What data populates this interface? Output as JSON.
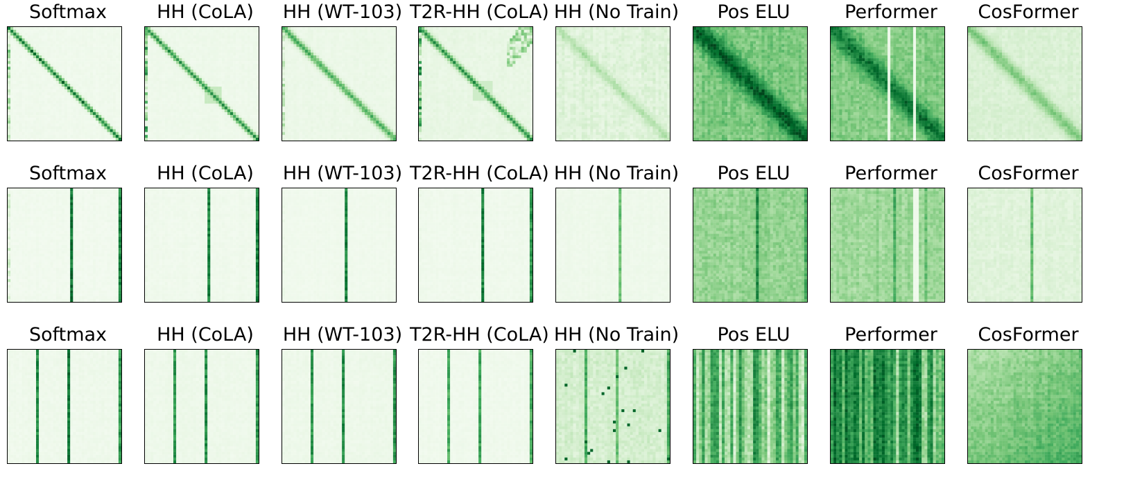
{
  "chart_data": [
    {
      "type": "heatmap",
      "title": "Softmax",
      "row": 1,
      "colormap": "Greens",
      "pattern": {
        "diag": 0.88,
        "diagWidth": 0.8,
        "base": 0.03,
        "noise": 0.05,
        "bands": [],
        "leftCol": 0.55,
        "seed": 11
      }
    },
    {
      "type": "heatmap",
      "title": "HH (CoLA)",
      "row": 1,
      "colormap": "Greens",
      "pattern": {
        "diag": 0.75,
        "diagWidth": 0.9,
        "base": 0.04,
        "noise": 0.05,
        "bands": [],
        "leftCol": 0.8,
        "block": [
          0.52,
          0.68,
          0.25
        ],
        "seed": 12
      }
    },
    {
      "type": "heatmap",
      "title": "HH (WT-103)",
      "row": 1,
      "colormap": "Greens",
      "pattern": {
        "diag": 0.6,
        "diagWidth": 1.2,
        "base": 0.05,
        "noise": 0.06,
        "bands": [],
        "leftCol": 0.4,
        "seed": 13
      }
    },
    {
      "type": "heatmap",
      "title": "T2R-HH (CoLA)",
      "row": 1,
      "colormap": "Greens",
      "pattern": {
        "diag": 0.7,
        "diagWidth": 1.0,
        "base": 0.06,
        "noise": 0.08,
        "bands": [],
        "leftCol": 0.85,
        "block": [
          0.48,
          0.64,
          0.22
        ],
        "corner": 0.5,
        "seed": 14
      }
    },
    {
      "type": "heatmap",
      "title": "HH (No Train)",
      "row": 1,
      "colormap": "Greens",
      "pattern": {
        "diag": 0.2,
        "diagWidth": 1.5,
        "base": 0.08,
        "noise": 0.14,
        "bands": [],
        "leftCol": 0.1,
        "seed": 15
      }
    },
    {
      "type": "heatmap",
      "title": "Pos ELU",
      "row": 1,
      "colormap": "Greens",
      "pattern": {
        "diag": 0.55,
        "diagWidth": 3.5,
        "base": 0.35,
        "noise": 0.25,
        "bands": [
          [
            0.12,
            0.4
          ],
          [
            0.3,
            0.3
          ],
          [
            0.55,
            0.35
          ],
          [
            0.82,
            0.4
          ],
          [
            0.95,
            0.5
          ]
        ],
        "leftCol": 0.3,
        "seed": 16
      }
    },
    {
      "type": "heatmap",
      "title": "Performer",
      "row": 1,
      "colormap": "Greens",
      "pattern": {
        "diag": 0.45,
        "diagWidth": 3.5,
        "base": 0.35,
        "noise": 0.22,
        "bands": [
          [
            0.1,
            0.35
          ],
          [
            0.3,
            0.3
          ],
          [
            0.6,
            0.35
          ],
          [
            0.92,
            0.3
          ]
        ],
        "lightBands": [
          0.5,
          0.75
        ],
        "leftCol": 0.2,
        "seed": 17
      }
    },
    {
      "type": "heatmap",
      "title": "CosFormer",
      "row": 1,
      "colormap": "Greens",
      "pattern": {
        "diag": 0.35,
        "diagWidth": 2.2,
        "base": 0.12,
        "noise": 0.1,
        "bands": [],
        "leftCol": 0.1,
        "seed": 18
      }
    },
    {
      "type": "heatmap",
      "title": "Softmax",
      "row": 2,
      "colormap": "Greens",
      "pattern": {
        "diag": 0.0,
        "base": 0.02,
        "noise": 0.05,
        "bands": [
          [
            0.56,
            0.95
          ],
          [
            0.99,
            0.9
          ]
        ],
        "leftCol": 0.3,
        "seed": 21
      }
    },
    {
      "type": "heatmap",
      "title": "HH (CoLA)",
      "row": 2,
      "colormap": "Greens",
      "pattern": {
        "diag": 0.0,
        "base": 0.03,
        "noise": 0.05,
        "bands": [
          [
            0.56,
            0.9
          ],
          [
            0.99,
            0.9
          ]
        ],
        "leftCol": 0.1,
        "seed": 22
      }
    },
    {
      "type": "heatmap",
      "title": "HH (WT-103)",
      "row": 2,
      "colormap": "Greens",
      "pattern": {
        "diag": 0.0,
        "base": 0.03,
        "noise": 0.04,
        "bands": [
          [
            0.56,
            0.9
          ]
        ],
        "leftCol": 0.1,
        "seed": 23
      }
    },
    {
      "type": "heatmap",
      "title": "T2R-HH (CoLA)",
      "row": 2,
      "colormap": "Greens",
      "pattern": {
        "diag": 0.0,
        "base": 0.03,
        "noise": 0.05,
        "bands": [
          [
            0.56,
            0.9
          ],
          [
            0.99,
            0.8
          ]
        ],
        "leftCol": 0.1,
        "seed": 24
      }
    },
    {
      "type": "heatmap",
      "title": "HH (No Train)",
      "row": 2,
      "colormap": "Greens",
      "pattern": {
        "diag": 0.0,
        "base": 0.04,
        "noise": 0.05,
        "bands": [
          [
            0.56,
            0.6
          ]
        ],
        "leftCol": 0.05,
        "seed": 25
      }
    },
    {
      "type": "heatmap",
      "title": "Pos ELU",
      "row": 2,
      "colormap": "Greens",
      "pattern": {
        "diag": 0.0,
        "base": 0.3,
        "noise": 0.22,
        "bands": [
          [
            0.56,
            0.85
          ],
          [
            0.6,
            0.5
          ],
          [
            0.99,
            0.7
          ],
          [
            0.15,
            0.3
          ]
        ],
        "leftCol": 0.3,
        "seed": 26
      }
    },
    {
      "type": "heatmap",
      "title": "Performer",
      "row": 2,
      "colormap": "Greens",
      "pattern": {
        "diag": 0.0,
        "base": 0.28,
        "noise": 0.2,
        "bands": [
          [
            0.4,
            0.5
          ],
          [
            0.56,
            0.7
          ],
          [
            0.85,
            0.6
          ]
        ],
        "lightBands": [
          0.75,
          0.78
        ],
        "leftCol": 0.2,
        "seed": 27
      }
    },
    {
      "type": "heatmap",
      "title": "CosFormer",
      "row": 2,
      "colormap": "Greens",
      "pattern": {
        "diag": 0.0,
        "base": 0.1,
        "noise": 0.1,
        "bands": [
          [
            0.56,
            0.6
          ]
        ],
        "leftCol": 0.1,
        "seed": 28
      }
    },
    {
      "type": "heatmap",
      "title": "Softmax",
      "row": 3,
      "colormap": "Greens",
      "pattern": {
        "diag": 0.0,
        "base": 0.03,
        "noise": 0.06,
        "bands": [
          [
            0.25,
            0.85
          ],
          [
            0.55,
            0.95
          ],
          [
            0.99,
            0.8
          ]
        ],
        "leftCol": 0.1,
        "seed": 31
      }
    },
    {
      "type": "heatmap",
      "title": "HH (CoLA)",
      "row": 3,
      "colormap": "Greens",
      "pattern": {
        "diag": 0.0,
        "base": 0.04,
        "noise": 0.06,
        "bands": [
          [
            0.25,
            0.8
          ],
          [
            0.55,
            0.85
          ],
          [
            0.99,
            0.8
          ]
        ],
        "leftCol": 0.1,
        "seed": 32
      }
    },
    {
      "type": "heatmap",
      "title": "HH (WT-103)",
      "row": 3,
      "colormap": "Greens",
      "pattern": {
        "diag": 0.0,
        "base": 0.04,
        "noise": 0.06,
        "bands": [
          [
            0.25,
            0.8
          ],
          [
            0.55,
            0.85
          ],
          [
            0.99,
            0.8
          ]
        ],
        "leftCol": 0.1,
        "seed": 33
      }
    },
    {
      "type": "heatmap",
      "title": "T2R-HH (CoLA)",
      "row": 3,
      "colormap": "Greens",
      "pattern": {
        "diag": 0.0,
        "base": 0.03,
        "noise": 0.05,
        "bands": [
          [
            0.25,
            0.7
          ],
          [
            0.55,
            0.75
          ],
          [
            0.99,
            0.7
          ]
        ],
        "leftCol": 0.05,
        "seed": 34
      }
    },
    {
      "type": "heatmap",
      "title": "HH (No Train)",
      "row": 3,
      "colormap": "Greens",
      "pattern": {
        "diag": 0.0,
        "base": 0.12,
        "noise": 0.16,
        "bands": [
          [
            0.25,
            0.7
          ],
          [
            0.55,
            0.6
          ],
          [
            0.99,
            0.7
          ]
        ],
        "leftCol": 0.1,
        "dots": true,
        "seed": 35
      }
    },
    {
      "type": "heatmap",
      "title": "Pos ELU",
      "row": 3,
      "colormap": "Greens",
      "pattern": {
        "diag": 0.0,
        "base": 0.3,
        "noise": 0.28,
        "bands": [
          [
            0.25,
            0.7
          ],
          [
            0.55,
            0.85
          ],
          [
            0.99,
            0.7
          ]
        ],
        "stripes": true,
        "leftCol": 0.2,
        "seed": 36
      }
    },
    {
      "type": "heatmap",
      "title": "Performer",
      "row": 3,
      "colormap": "Greens",
      "pattern": {
        "diag": 0.0,
        "base": 0.45,
        "noise": 0.3,
        "bands": [
          [
            0.12,
            0.8
          ],
          [
            0.25,
            0.6
          ],
          [
            0.55,
            0.85
          ],
          [
            0.72,
            0.7
          ]
        ],
        "stripes": true,
        "leftCol": 0.3,
        "seed": 37
      }
    },
    {
      "type": "heatmap",
      "title": "CosFormer",
      "row": 3,
      "colormap": "Greens",
      "pattern": {
        "diag": 0.0,
        "base": 0.22,
        "noise": 0.22,
        "bands": [
          [
            0.25,
            0.4
          ],
          [
            0.99,
            0.6
          ]
        ],
        "leftCol": 0.15,
        "gradient": 0.3,
        "seed": 38
      }
    }
  ]
}
